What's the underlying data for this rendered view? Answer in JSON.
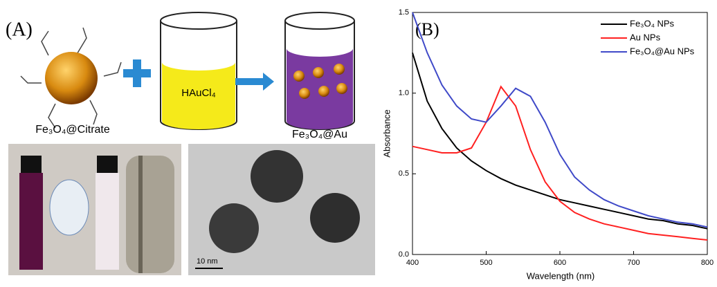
{
  "scheme": {
    "panel_label": "(A)",
    "core_label": "Fe₃O₄@Citrate",
    "reagent_label": "HAuCl₄",
    "product_label": "Fe₃O₄@Au",
    "scale_bar": "10 nm"
  },
  "chart_data": {
    "type": "line",
    "panel_label": "(B)",
    "x_label": "Wavelength (nm)",
    "y_label": "Absorbance",
    "x": [
      400,
      420,
      440,
      460,
      480,
      500,
      520,
      540,
      560,
      580,
      600,
      620,
      640,
      660,
      680,
      700,
      720,
      740,
      760,
      780,
      800
    ],
    "series": [
      {
        "name": "Fe₃O₄ NPs",
        "color": "#000000",
        "values": [
          1.25,
          0.95,
          0.78,
          0.66,
          0.58,
          0.52,
          0.47,
          0.43,
          0.4,
          0.37,
          0.34,
          0.32,
          0.3,
          0.28,
          0.26,
          0.24,
          0.22,
          0.21,
          0.19,
          0.18,
          0.16
        ]
      },
      {
        "name": "Au NPs",
        "color": "#ff2020",
        "values": [
          0.67,
          0.65,
          0.63,
          0.63,
          0.66,
          0.82,
          1.04,
          0.92,
          0.65,
          0.45,
          0.33,
          0.26,
          0.22,
          0.19,
          0.17,
          0.15,
          0.13,
          0.12,
          0.11,
          0.1,
          0.09
        ]
      },
      {
        "name": "Fe₃O₄@Au NPs",
        "color": "#3f49c8",
        "values": [
          1.5,
          1.25,
          1.05,
          0.92,
          0.84,
          0.82,
          0.92,
          1.03,
          0.98,
          0.82,
          0.62,
          0.48,
          0.4,
          0.34,
          0.3,
          0.27,
          0.24,
          0.22,
          0.2,
          0.19,
          0.17
        ]
      }
    ],
    "xlim": [
      400,
      800
    ],
    "xticks": [
      400,
      500,
      600,
      700,
      800
    ],
    "ylim": [
      0,
      1.5
    ],
    "yticks": [
      {
        "value": 0,
        "label": "0.0"
      },
      {
        "value": 0.5,
        "label": "0.5"
      },
      {
        "value": 1,
        "label": "1.0"
      },
      {
        "value": 1.5,
        "label": "1.5"
      }
    ],
    "legend": "upper right"
  }
}
